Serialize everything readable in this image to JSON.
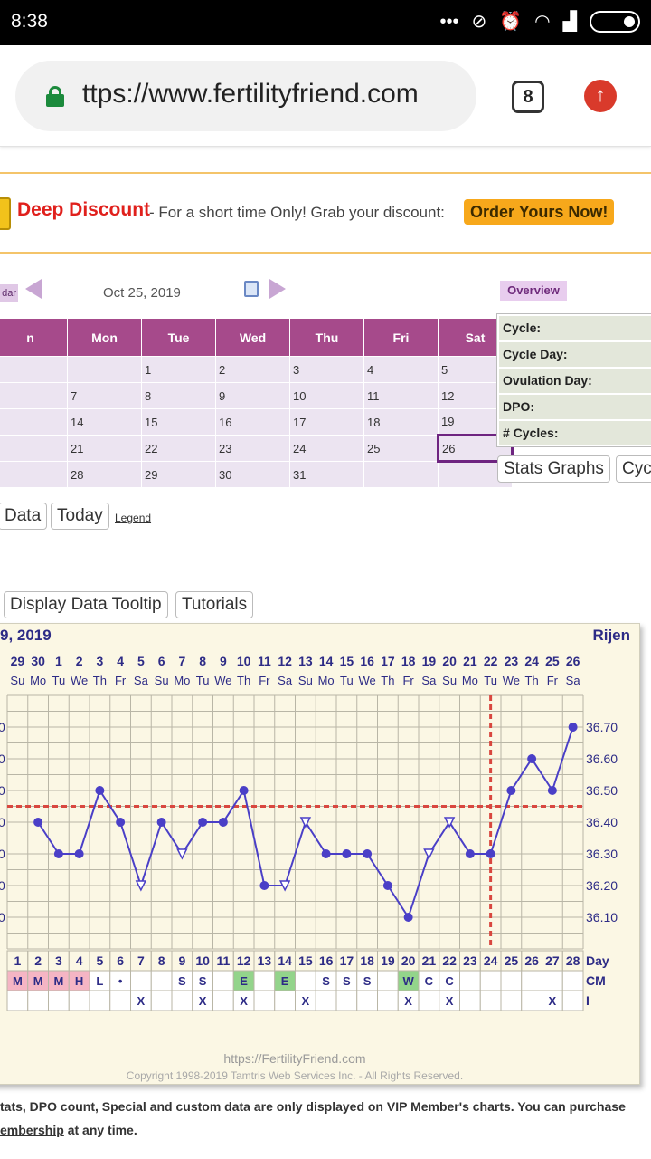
{
  "status_bar": {
    "time": "8:38",
    "icons": [
      "more-dots-icon",
      "mute-vibrate-icon",
      "alarm-icon",
      "wifi-icon",
      "signal-icon",
      "battery-icon"
    ]
  },
  "browser": {
    "url": "ttps://www.fertilityfriend.com",
    "tab_count": "8"
  },
  "promo": {
    "title": "Deep Discount",
    "text": "- For a short time Only! Grab your discount:",
    "button": "Order Yours Now!"
  },
  "calendar": {
    "tab_label": "dar",
    "date": "Oct 25, 2019",
    "headers": [
      "n",
      "Mon",
      "Tue",
      "Wed",
      "Thu",
      "Fri",
      "Sat"
    ],
    "weeks": [
      [
        "",
        "",
        "1",
        "2",
        "3",
        "4",
        "5"
      ],
      [
        "",
        "7",
        "8",
        "9",
        "10",
        "11",
        "12"
      ],
      [
        "",
        "14",
        "15",
        "16",
        "17",
        "18",
        "19"
      ],
      [
        "",
        "21",
        "22",
        "23",
        "24",
        "25",
        "26"
      ],
      [
        "",
        "28",
        "29",
        "30",
        "31",
        "",
        ""
      ]
    ],
    "highlighted_day": "26",
    "buttons": {
      "data": "Data",
      "today": "Today",
      "legend": "Legend"
    }
  },
  "overview": {
    "tab": "Overview",
    "rows": [
      "Cycle:",
      "Cycle Day:",
      "Ovulation Day:",
      "DPO:",
      "# Cycles:"
    ],
    "buttons": {
      "stats": "Stats Graphs",
      "cycles": "Cyc"
    }
  },
  "chart_buttons": {
    "tooltip": "Display Data Tooltip",
    "tutorials": "Tutorials"
  },
  "chart_data": {
    "type": "line",
    "title": "9, 2019",
    "name": "Rijen",
    "dates": [
      "29",
      "30",
      "1",
      "2",
      "3",
      "4",
      "5",
      "6",
      "7",
      "8",
      "9",
      "10",
      "11",
      "12",
      "13",
      "14",
      "15",
      "16",
      "17",
      "18",
      "19",
      "20",
      "21",
      "22",
      "23",
      "24",
      "25",
      "26"
    ],
    "weekdays": [
      "Su",
      "Mo",
      "Tu",
      "We",
      "Th",
      "Fr",
      "Sa",
      "Su",
      "Mo",
      "Tu",
      "We",
      "Th",
      "Fr",
      "Sa",
      "Su",
      "Mo",
      "Tu",
      "We",
      "Th",
      "Fr",
      "Sa",
      "Su",
      "Mo",
      "Tu",
      "We",
      "Th",
      "Fr",
      "Sa"
    ],
    "cycle_days": [
      1,
      2,
      3,
      4,
      5,
      6,
      7,
      8,
      9,
      10,
      11,
      12,
      13,
      14,
      15,
      16,
      17,
      18,
      19,
      20,
      21,
      22,
      23,
      24,
      25,
      26,
      27,
      28
    ],
    "temps": [
      null,
      36.4,
      36.3,
      36.3,
      36.5,
      36.4,
      36.2,
      36.4,
      36.3,
      36.4,
      36.4,
      36.5,
      36.2,
      36.2,
      36.4,
      36.3,
      36.3,
      36.3,
      36.2,
      36.1,
      36.3,
      36.4,
      36.3,
      36.3,
      36.5,
      36.6,
      36.5,
      36.7
    ],
    "open_points": [
      7,
      9,
      14,
      15,
      21,
      22
    ],
    "y_ticks": [
      36.7,
      36.6,
      36.5,
      36.4,
      36.3,
      36.2,
      36.1
    ],
    "y_tick_labels": [
      "36.70",
      "36.60",
      "36.50",
      "36.40",
      "36.30",
      "36.20",
      "36.10"
    ],
    "ylim": [
      36.0,
      36.8
    ],
    "coverline": 36.45,
    "ovulation_day": 24,
    "day_label": "Day",
    "cm_label": "CM",
    "i_label": "I",
    "cm": [
      "M",
      "M",
      "M",
      "H",
      "L",
      "•",
      "",
      "",
      "S",
      "S",
      "",
      "E",
      "",
      "E",
      "",
      "S",
      "S",
      "S",
      "",
      "W",
      "C",
      "C",
      "",
      "",
      "",
      "",
      "",
      ""
    ],
    "intercourse": [
      "",
      "",
      "",
      "",
      "",
      "",
      "X",
      "",
      "",
      "X",
      "",
      "X",
      "",
      "",
      "X",
      "",
      "",
      "",
      "",
      "X",
      "",
      "X",
      "",
      "",
      "",
      "",
      "X",
      ""
    ],
    "colors": {
      "line": "#4a3fc7",
      "coverline": "#d9473f",
      "menses": "#f5b5c4",
      "fertile": "#93d48b"
    },
    "footer_url": "https://FertilityFriend.com",
    "copyright": "Copyright 1998-2019 Tamtris Web Services Inc. - All Rights Reserved."
  },
  "vip_note": {
    "line1": "tats, DPO count, Special and custom data are only displayed on VIP Member's charts. You can purchase",
    "link": "embership",
    "line2_rest": " at any time."
  }
}
